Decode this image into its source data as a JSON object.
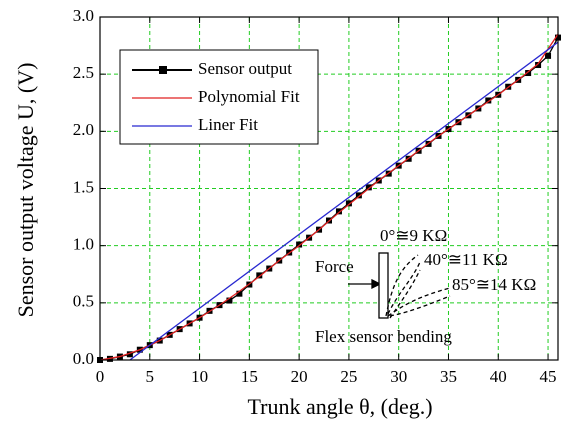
{
  "chart_data": {
    "type": "line",
    "x_label": "Trunk angle θ, (deg.)",
    "y_label": "Sensor output voltage U, (V)",
    "xlim": [
      0,
      46
    ],
    "ylim": [
      0,
      3
    ],
    "xticks": [
      0,
      5,
      10,
      15,
      20,
      25,
      30,
      35,
      40,
      45
    ],
    "yticks": [
      {
        "value": 0,
        "label": "0.0"
      },
      0.5,
      {
        "value": 1,
        "label": "1.0"
      },
      1.5,
      {
        "value": 2,
        "label": "2.0"
      },
      2.5,
      {
        "value": 3,
        "label": "3.0"
      }
    ],
    "grid": true,
    "legend": "upper left",
    "series": [
      {
        "name": "Sensor output",
        "color": "#000000",
        "markers": true,
        "x": [
          0,
          1,
          2,
          3,
          4,
          5,
          6,
          7,
          8,
          9,
          10,
          11,
          12,
          13,
          14,
          15,
          16,
          17,
          18,
          19,
          20,
          21,
          22,
          23,
          24,
          25,
          26,
          27,
          28,
          29,
          30,
          31,
          32,
          33,
          34,
          35,
          36,
          37,
          38,
          39,
          40,
          41,
          42,
          43,
          44,
          45,
          46
        ],
        "values": [
          0.0,
          0.01,
          0.03,
          0.05,
          0.09,
          0.13,
          0.17,
          0.22,
          0.27,
          0.32,
          0.37,
          0.43,
          0.48,
          0.52,
          0.58,
          0.66,
          0.74,
          0.8,
          0.87,
          0.94,
          1.01,
          1.07,
          1.14,
          1.22,
          1.3,
          1.37,
          1.44,
          1.51,
          1.57,
          1.63,
          1.7,
          1.76,
          1.83,
          1.89,
          1.96,
          2.02,
          2.08,
          2.14,
          2.2,
          2.27,
          2.32,
          2.39,
          2.45,
          2.51,
          2.58,
          2.66,
          2.82
        ]
      },
      {
        "name": "Polynomial Fit",
        "color": "#e02020",
        "markers": false,
        "x": [
          0,
          2,
          4,
          6,
          8,
          10,
          12,
          14,
          16,
          18,
          20,
          22,
          24,
          26,
          28,
          30,
          32,
          34,
          36,
          38,
          40,
          42,
          44,
          46
        ],
        "values": [
          0.0,
          0.03,
          0.09,
          0.17,
          0.27,
          0.37,
          0.48,
          0.6,
          0.73,
          0.87,
          1.0,
          1.14,
          1.29,
          1.43,
          1.57,
          1.7,
          1.83,
          1.96,
          2.08,
          2.2,
          2.32,
          2.45,
          2.59,
          2.85
        ]
      },
      {
        "name": "Liner Fit",
        "color": "#2828d0",
        "markers": false,
        "x": [
          3,
          46
        ],
        "values": [
          0,
          2.78
        ]
      }
    ],
    "annotations": {
      "force": "Force",
      "angle_0": "0°≅9 KΩ",
      "angle_40": "40°≅11 KΩ",
      "angle_85": "85°≅14 KΩ",
      "caption": "Flex sensor bending"
    }
  }
}
